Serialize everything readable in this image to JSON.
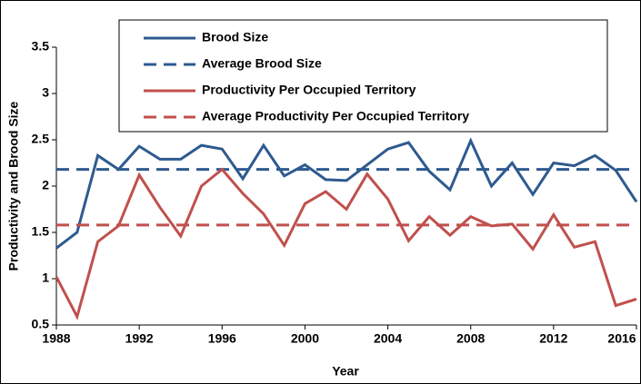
{
  "chart_data": {
    "type": "line",
    "x_label": "Year",
    "y_label": "Productivity and Brood Size",
    "x": [
      1988,
      1989,
      1990,
      1991,
      1992,
      1993,
      1994,
      1995,
      1996,
      1997,
      1998,
      1999,
      2000,
      2001,
      2002,
      2003,
      2004,
      2005,
      2006,
      2007,
      2008,
      2009,
      2010,
      2011,
      2012,
      2013,
      2014,
      2015,
      2016
    ],
    "series": [
      {
        "name": "Brood Size",
        "color": "#2e5a8f",
        "dashed": false,
        "values": [
          1.33,
          1.5,
          2.33,
          2.18,
          2.43,
          2.29,
          2.29,
          2.44,
          2.4,
          2.08,
          2.44,
          2.11,
          2.23,
          2.07,
          2.06,
          2.23,
          2.4,
          2.47,
          2.16,
          1.96,
          2.49,
          2.0,
          2.25,
          1.91,
          2.25,
          2.22,
          2.33,
          2.17,
          1.83
        ]
      },
      {
        "name": "Average Brood Size",
        "color": "#2e5a8f",
        "dashed": true,
        "x": [
          1988,
          2016
        ],
        "values": [
          2.18,
          2.18
        ]
      },
      {
        "name": "Productivity Per Occupied Territory",
        "color": "#c0504d",
        "dashed": false,
        "values": [
          1.02,
          0.59,
          1.4,
          1.57,
          2.12,
          1.77,
          1.46,
          2.0,
          2.18,
          1.92,
          1.7,
          1.36,
          1.81,
          1.94,
          1.75,
          2.13,
          1.86,
          1.41,
          1.67,
          1.47,
          1.67,
          1.57,
          1.59,
          1.32,
          1.69,
          1.34,
          1.4,
          0.71,
          0.78
        ]
      },
      {
        "name": "Average Productivity Per Occupied Territory",
        "color": "#c0504d",
        "dashed": true,
        "x": [
          1988,
          2016
        ],
        "values": [
          1.58,
          1.58
        ]
      }
    ],
    "xlim": [
      1988,
      2016
    ],
    "xticks": [
      1988,
      1992,
      1996,
      2000,
      2004,
      2008,
      2012,
      2016
    ],
    "ylim": [
      0.5,
      3.5
    ],
    "yticks": [
      0.5,
      1,
      1.5,
      2,
      2.5,
      3,
      3.5
    ]
  }
}
